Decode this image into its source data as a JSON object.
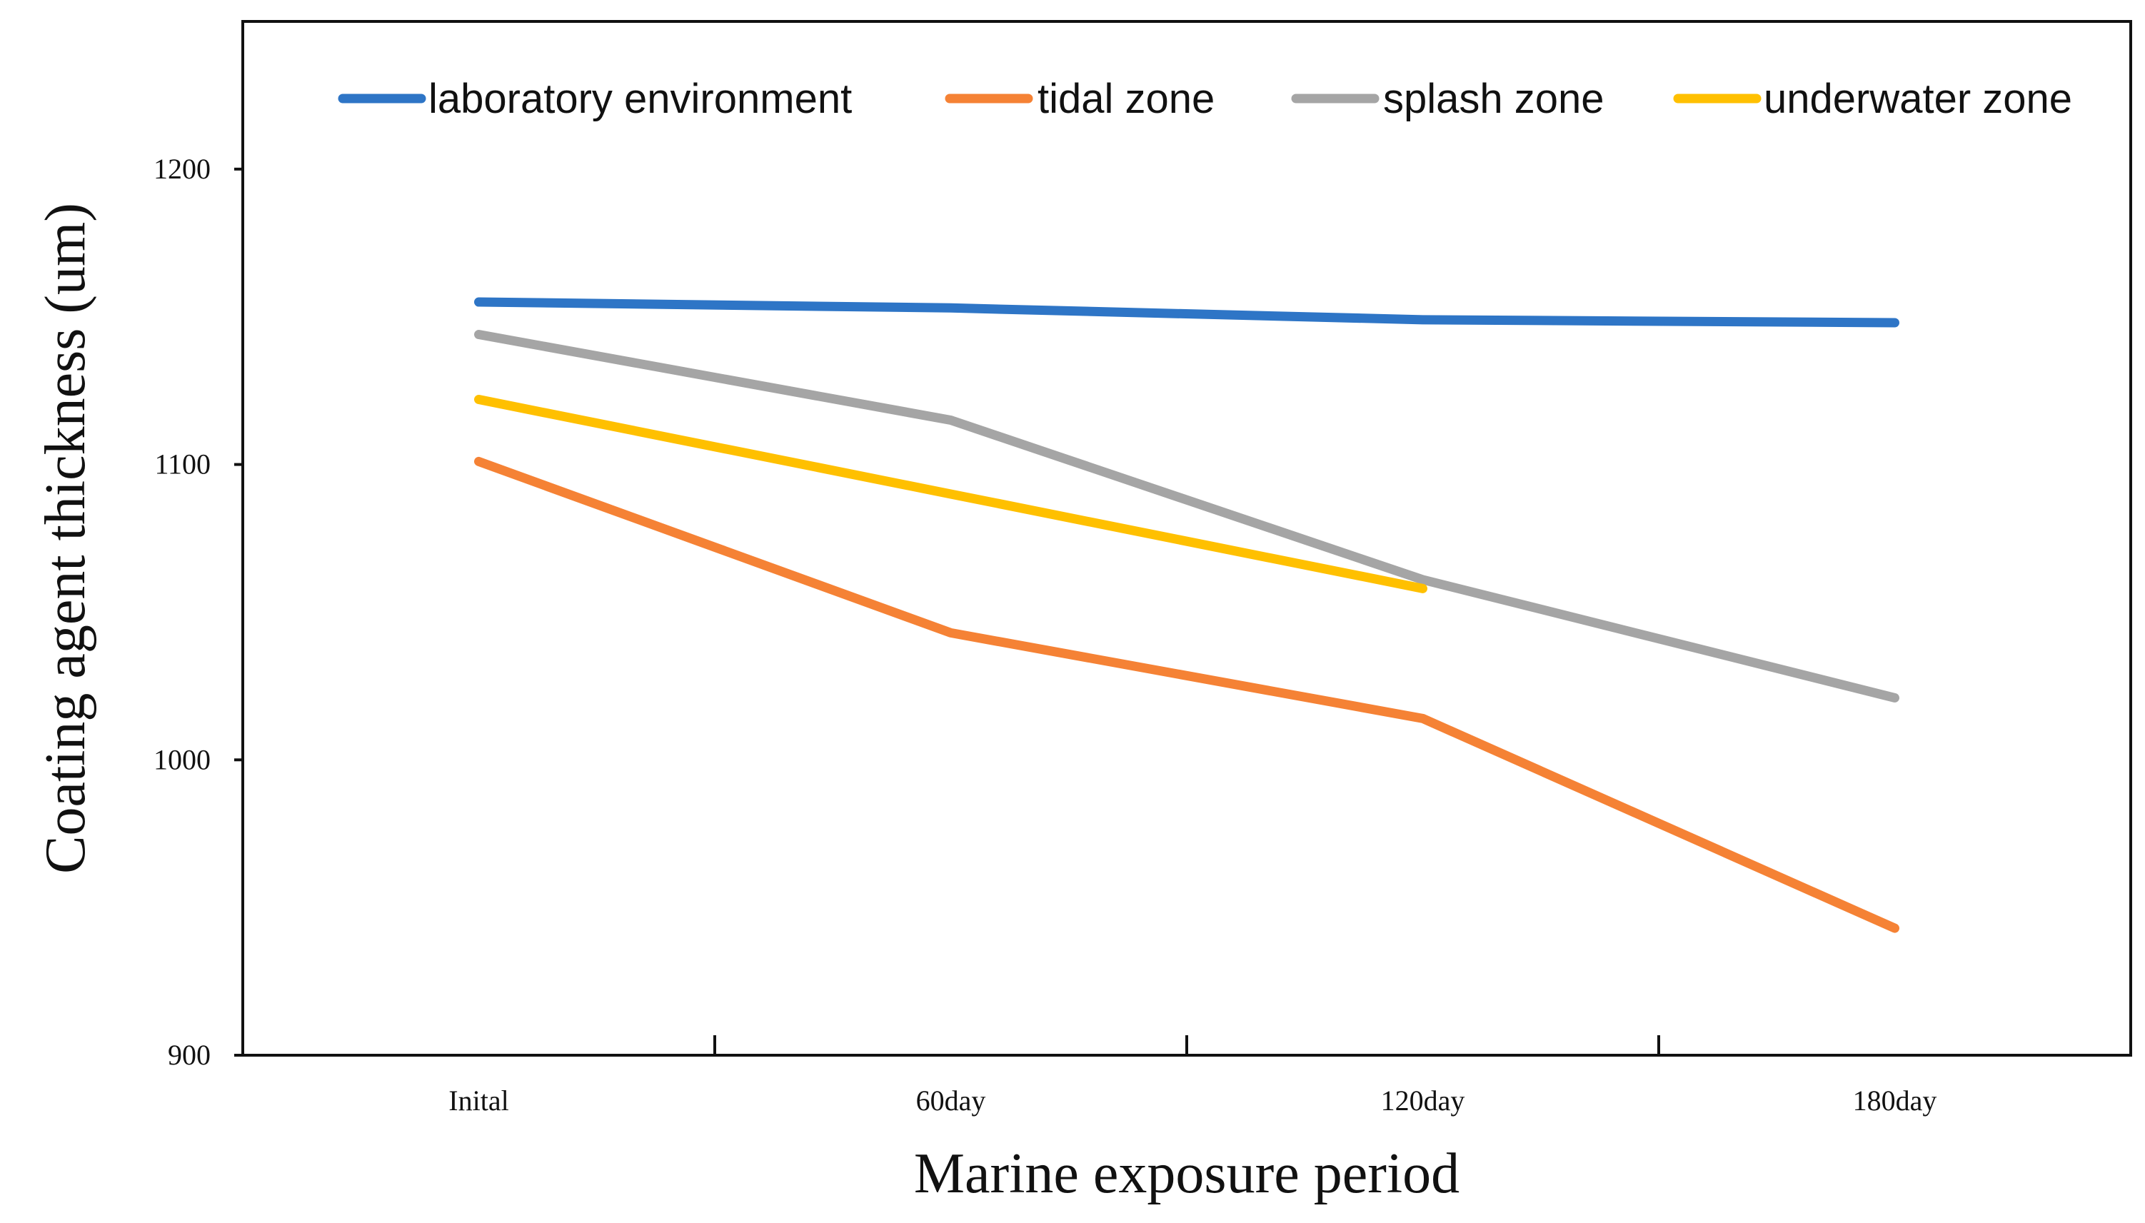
{
  "chart_data": {
    "type": "line",
    "title": "",
    "xlabel": "Marine exposure period",
    "ylabel": "Coating agent thickness (um)",
    "categories": [
      "Inital",
      "60day",
      "120day",
      "180day"
    ],
    "ylim": [
      900,
      1250
    ],
    "yticks": [
      900,
      1000,
      1100,
      1200
    ],
    "grid": false,
    "legend_position": "top",
    "series": [
      {
        "name": "laboratory environment",
        "color": "#2E75C6",
        "values": [
          1155,
          1153,
          1149,
          1148
        ]
      },
      {
        "name": "tidal zone",
        "color": "#F58235",
        "values": [
          1101,
          1043,
          1014,
          943
        ]
      },
      {
        "name": "splash zone",
        "color": "#A5A5A5",
        "values": [
          1144,
          1115,
          1061,
          1021
        ]
      },
      {
        "name": "underwater zone",
        "color": "#FFC000",
        "values": [
          1122,
          1090,
          1058,
          null
        ]
      }
    ]
  }
}
